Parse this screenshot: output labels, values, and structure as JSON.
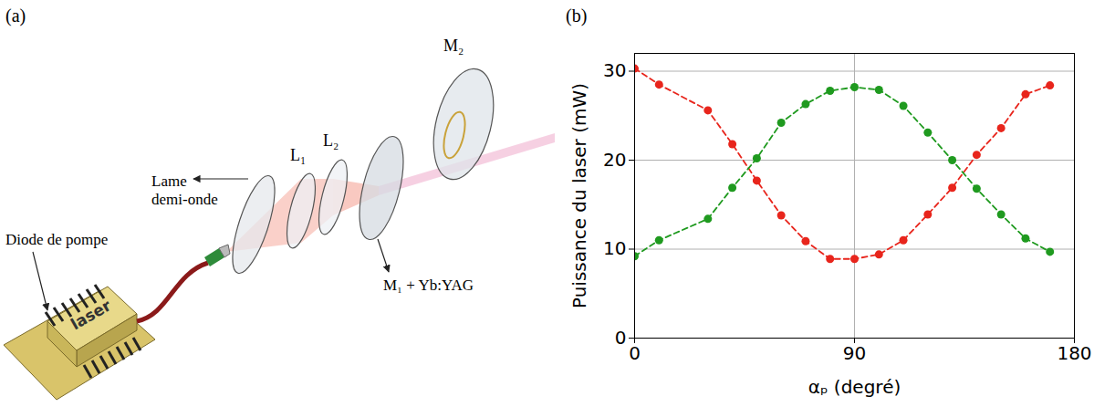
{
  "diagram": {
    "panel_label": "(a)",
    "labels": {
      "half_wave_plate": "Lame demi-onde",
      "lens1": "L₁",
      "lens2": "L₂",
      "mirror1": "M₁ + Yb:YAG",
      "mirror2": "M₂",
      "pump": "Diode de pompe",
      "diode_text": "laser"
    }
  },
  "chart_data": {
    "type": "line",
    "panel_label": "(b)",
    "x_label": "αₚ (degré)",
    "y_label": "Puissance du laser (mW)",
    "x": [
      0,
      10,
      30,
      40,
      50,
      60,
      70,
      80,
      90,
      100,
      110,
      120,
      130,
      140,
      150,
      160,
      170
    ],
    "series": [
      {
        "color": "#e8251c",
        "marker": "circle",
        "line_style": "dashed",
        "values": [
          30.3,
          28.5,
          25.6,
          21.8,
          17.7,
          13.8,
          10.9,
          8.9,
          8.9,
          9.4,
          11.0,
          13.9,
          16.9,
          20.6,
          23.6,
          27.4,
          28.4
        ]
      },
      {
        "color": "#1f9a1f",
        "marker": "circle",
        "line_style": "dashed",
        "values": [
          9.2,
          11.0,
          13.4,
          16.9,
          20.2,
          24.2,
          26.3,
          27.8,
          28.2,
          27.9,
          26.1,
          23.1,
          20.0,
          16.8,
          13.9,
          11.2,
          9.7
        ]
      }
    ],
    "xlim": [
      0,
      180
    ],
    "xticks": [
      0,
      90,
      180
    ],
    "ylim": [
      0,
      32
    ],
    "yticks": [
      0,
      10,
      20,
      30
    ],
    "grid": true
  }
}
